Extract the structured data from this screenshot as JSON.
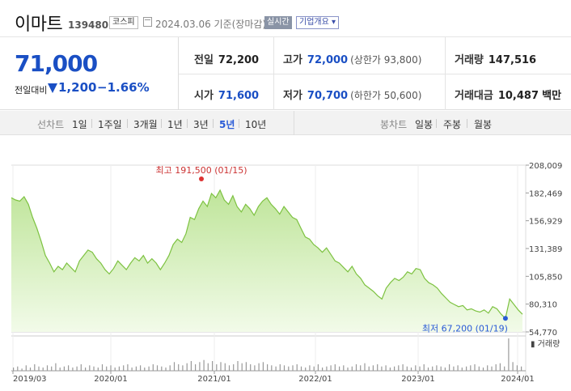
{
  "header": {
    "name": "이마트",
    "code": "139480",
    "market": "코스피",
    "date": "2024.03.06",
    "date_suffix": "기준(장마감)",
    "realtime": "실시간",
    "overview": "기업개요"
  },
  "summary": {
    "price": "71,000",
    "change_label": "전일대비",
    "change_value": "1,200",
    "change_pct": "−1.66%",
    "prev_label": "전일",
    "prev_value": "72,200",
    "high_label": "고가",
    "high_value": "72,000",
    "upper_limit": "(상한가 93,800)",
    "volume_label": "거래량",
    "volume_value": "147,516",
    "open_label": "시가",
    "open_value": "71,600",
    "low_label": "저가",
    "low_value": "70,700",
    "lower_limit": "(하한가 50,600)",
    "amount_label": "거래대금",
    "amount_value": "10,487",
    "amount_unit": "백만"
  },
  "toolbar": {
    "line_label": "선차트",
    "periods": [
      "1일",
      "1주일",
      "3개월",
      "1년",
      "3년",
      "5년",
      "10년"
    ],
    "active_period": "5년",
    "candle_label": "봉차트",
    "candle_options": [
      "일봉",
      "주봉",
      "월봉"
    ]
  },
  "chart_data": {
    "type": "area",
    "y_ticks": [
      "208,009",
      "182,469",
      "156,929",
      "131,389",
      "105,850",
      "80,310",
      "54,770"
    ],
    "ylim": [
      54770,
      208009
    ],
    "x_ticks": [
      "2019/03",
      "2020/01",
      "2021/01",
      "2022/01",
      "2023/01",
      "2024/01"
    ],
    "high_annotation": "최고 191,500 (01/15)",
    "low_annotation": "최저 67,200 (01/19)",
    "volume_label": "거래량",
    "series": [
      {
        "values": [
          178000,
          176000,
          175000,
          179000,
          172000,
          160000,
          150000,
          138000,
          125000,
          118000,
          110000,
          115000,
          112000,
          118000,
          114000,
          110000,
          120000,
          125000,
          130000,
          128000,
          122000,
          118000,
          112000,
          108000,
          113000,
          120000,
          116000,
          112000,
          118000,
          123000,
          120000,
          125000,
          118000,
          122000,
          118000,
          112000,
          118000,
          125000,
          135000,
          140000,
          137000,
          145000,
          160000,
          158000,
          168000,
          175000,
          170000,
          182000,
          178000,
          185000,
          176000,
          172000,
          180000,
          170000,
          165000,
          172000,
          168000,
          162000,
          170000,
          175000,
          178000,
          172000,
          168000,
          163000,
          170000,
          165000,
          160000,
          158000,
          150000,
          142000,
          140000,
          135000,
          132000,
          128000,
          132000,
          126000,
          120000,
          118000,
          114000,
          110000,
          115000,
          108000,
          104000,
          98000,
          95000,
          92000,
          88000,
          85000,
          95000,
          100000,
          104000,
          102000,
          105000,
          110000,
          108000,
          113000,
          112000,
          104000,
          100000,
          98000,
          95000,
          90000,
          86000,
          82000,
          80000,
          78000,
          79000,
          75000,
          76000,
          74000,
          73000,
          75000,
          72000,
          78000,
          76000,
          71000,
          67200,
          85000,
          80000,
          75000,
          71000
        ],
        "color": "#7dc241"
      }
    ],
    "volume": [
      3,
      4,
      2,
      5,
      3,
      6,
      4,
      3,
      5,
      4,
      7,
      3,
      4,
      5,
      3,
      4,
      6,
      3,
      5,
      4,
      3,
      6,
      4,
      5,
      3,
      4,
      5,
      6,
      3,
      4,
      5,
      3,
      4,
      6,
      5,
      4,
      3,
      5,
      8,
      6,
      5,
      7,
      9,
      6,
      8,
      10,
      7,
      9,
      6,
      8,
      7,
      5,
      6,
      9,
      7,
      8,
      6,
      5,
      7,
      8,
      6,
      5,
      4,
      6,
      5,
      4,
      5,
      6,
      4,
      3,
      5,
      4,
      6,
      3,
      4,
      5,
      6,
      4,
      5,
      3,
      4,
      6,
      5,
      7,
      4,
      5,
      6,
      4,
      5,
      3,
      4,
      5,
      6,
      4,
      3,
      5,
      4,
      6,
      3,
      4,
      5,
      4,
      3,
      6,
      4,
      5,
      3,
      4,
      5,
      6,
      4,
      3,
      5,
      4,
      6,
      7,
      4,
      30,
      8,
      5,
      4
    ]
  }
}
